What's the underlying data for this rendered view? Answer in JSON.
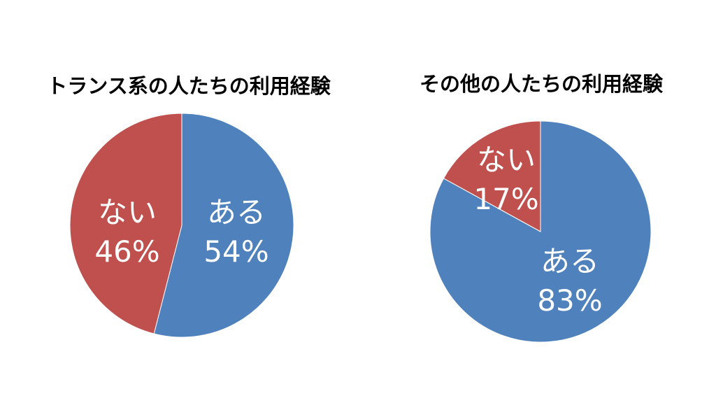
{
  "chart_data": [
    {
      "type": "pie",
      "title": "トランス系の人たちの利用経験",
      "slices": [
        {
          "label": "ある",
          "value": 54,
          "value_label": "54%",
          "color": "#4F81BD"
        },
        {
          "label": "ない",
          "value": 46,
          "value_label": "46%",
          "color": "#C0504D"
        }
      ],
      "start_angle_deg": 0,
      "direction": "clockwise",
      "legend": "none"
    },
    {
      "type": "pie",
      "title": "その他の人たちの利用経験",
      "slices": [
        {
          "label": "ある",
          "value": 83,
          "value_label": "83%",
          "color": "#4F81BD"
        },
        {
          "label": "ない",
          "value": 17,
          "value_label": "17%",
          "color": "#C0504D"
        }
      ],
      "start_angle_deg": 0,
      "direction": "clockwise",
      "legend": "none"
    }
  ]
}
